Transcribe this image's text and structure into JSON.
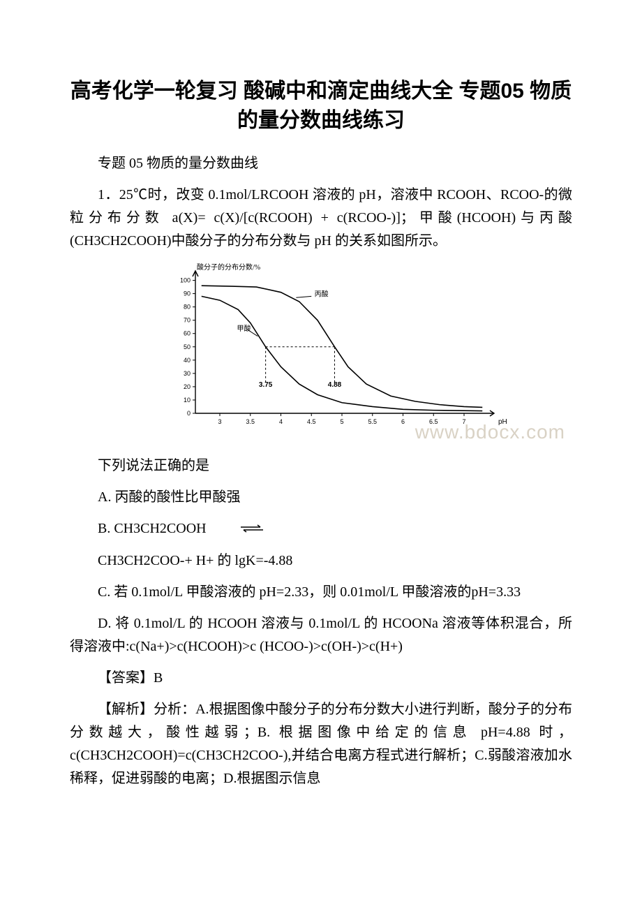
{
  "title": "高考化学一轮复习 酸碱中和滴定曲线大全 专题05 物质的量分数曲线练习",
  "subtitle": "专题 05 物质的量分数曲线",
  "q1": {
    "stem": "1．25℃时，改变 0.1mol/LRCOOH 溶液的 pH，溶液中 RCOOH、RCOO-的微粒分布分数 a(X)= c(X)/[c(RCOOH) + c(RCOO-)]；甲酸(HCOOH)与丙酸(CH3CH2COOH)中酸分子的分布分数与 pH 的关系如图所示。",
    "below_chart": "下列说法正确的是",
    "optA": "A. 丙酸的酸性比甲酸强",
    "optB_pre": "B. CH3CH2COOH",
    "optB_line2": "CH3CH2COO-+ H+ 的 lgK=-4.88",
    "optC": "C. 若 0.1mol/L 甲酸溶液的 pH=2.33，则 0.01mol/L 甲酸溶液的pH=3.33",
    "optD": "D. 将 0.1mol/L 的 HCOOH 溶液与 0.1mol/L 的 HCOONa 溶液等体积混合，所得溶液中:c(Na+)>c(HCOOH)>c (HCOO-)>c(OH-)>c(H+)",
    "answer": "【答案】B",
    "analysis": "【解析】分析：A.根据图像中酸分子的分布分数大小进行判断，酸分子的分布分数越大，酸性越弱；B. 根据图像中给定的信息 pH=4.88 时，c(CH3CH2COOH)=c(CH3CH2COO-),并结合电离方程式进行解析；C.弱酸溶液加水稀释，促进弱酸的电离；D.根据图示信息"
  },
  "chart": {
    "type": "line",
    "y_axis_label": "酸分子的分布分数/%",
    "x_axis_label": "pH",
    "series_label_1": "甲酸",
    "series_label_2": "丙酸",
    "x_ticks": [
      "3",
      "3.5",
      "4",
      "4.5",
      "5",
      "5.5",
      "6",
      "6.5",
      "7"
    ],
    "y_ticks": [
      "0",
      "10",
      "20",
      "30",
      "40",
      "50",
      "60",
      "70",
      "80",
      "90",
      "100"
    ],
    "xlim": [
      2.6,
      7.4
    ],
    "ylim": [
      0,
      105
    ],
    "ref_y": 50,
    "ref_x1": 3.75,
    "ref_x2": 4.88,
    "ref_label_1": "3.75",
    "ref_label_2": "4.88",
    "axis_color": "#000000",
    "curve_color": "#000000",
    "line_width": 1.6,
    "tick_fontsize": 9,
    "label_fontsize": 10,
    "formic_curve": [
      [
        2.7,
        88
      ],
      [
        3.0,
        85
      ],
      [
        3.3,
        78
      ],
      [
        3.5,
        68
      ],
      [
        3.75,
        50
      ],
      [
        4.0,
        35
      ],
      [
        4.3,
        22
      ],
      [
        4.6,
        14
      ],
      [
        5.0,
        8
      ],
      [
        5.5,
        5
      ],
      [
        6.0,
        3
      ],
      [
        6.5,
        2.3
      ],
      [
        7.0,
        2
      ],
      [
        7.3,
        1.8
      ]
    ],
    "propionic_curve": [
      [
        2.7,
        96
      ],
      [
        3.2,
        95.5
      ],
      [
        3.6,
        95
      ],
      [
        4.0,
        91
      ],
      [
        4.3,
        84
      ],
      [
        4.6,
        70
      ],
      [
        4.88,
        50
      ],
      [
        5.1,
        35
      ],
      [
        5.4,
        22
      ],
      [
        5.8,
        13
      ],
      [
        6.2,
        9
      ],
      [
        6.6,
        6.5
      ],
      [
        7.0,
        5
      ],
      [
        7.3,
        4.5
      ]
    ]
  },
  "watermark": {
    "text": "www.bdocx.com",
    "color": "#d9d2c5"
  }
}
